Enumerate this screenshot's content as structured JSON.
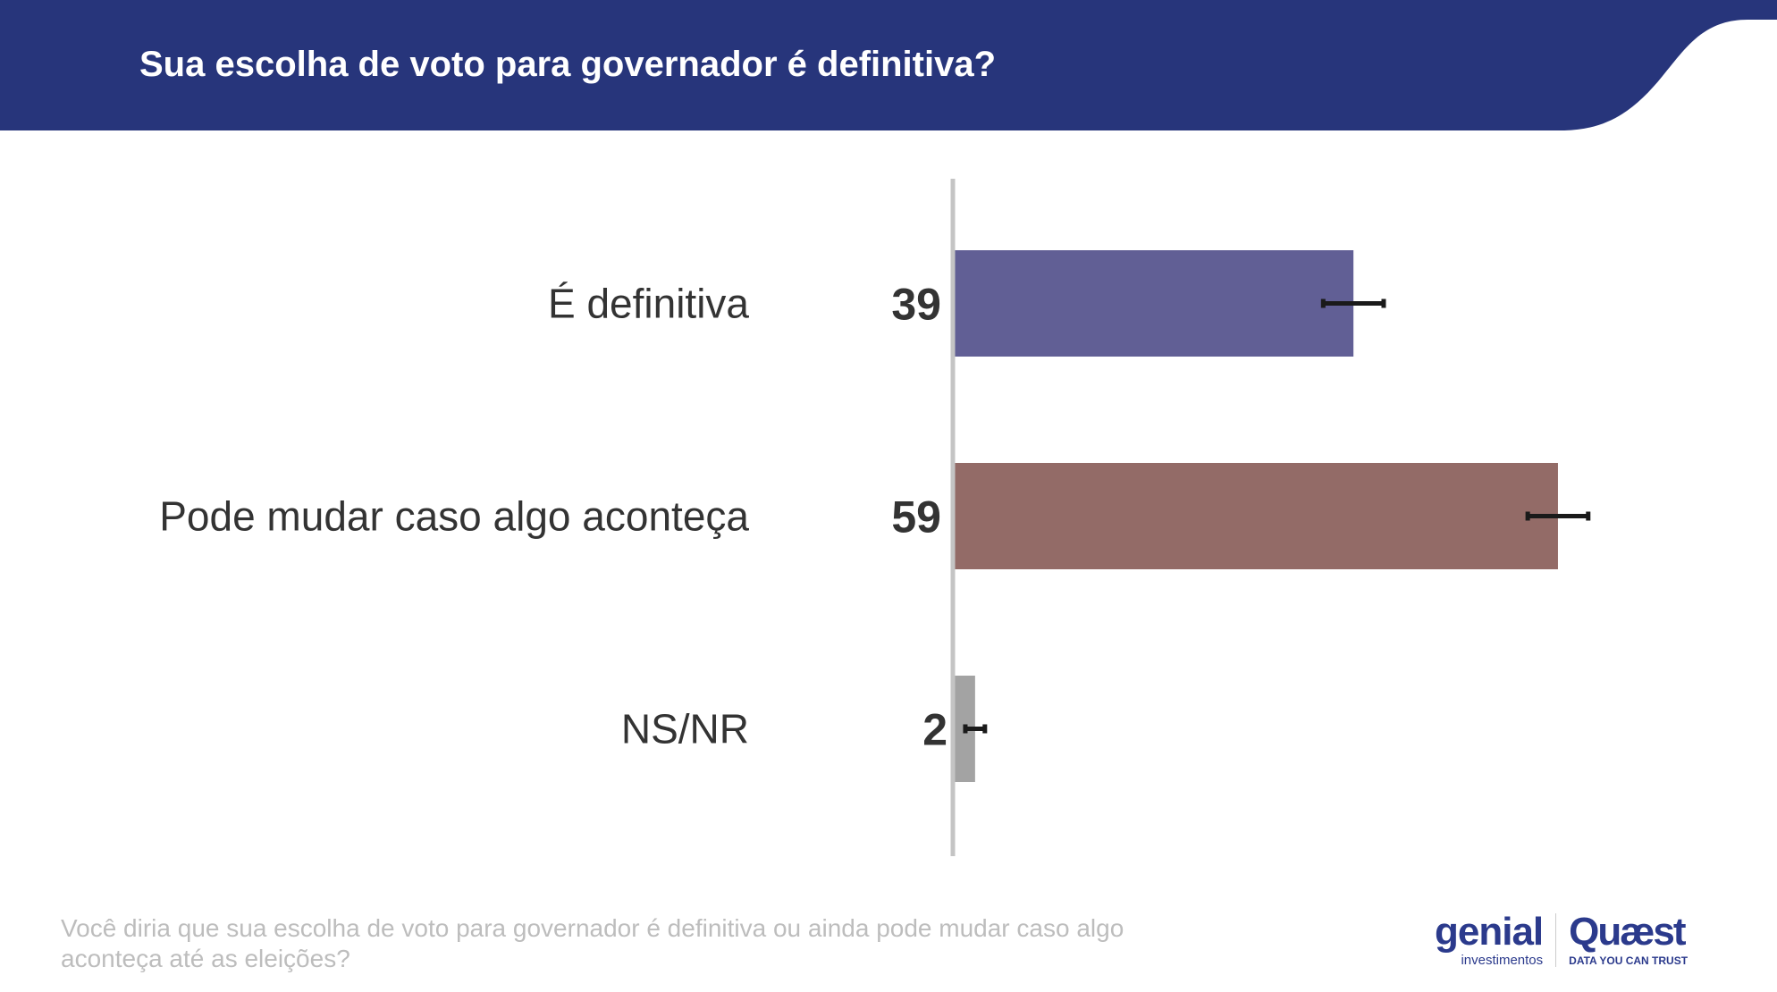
{
  "header": {
    "title": "Sua escolha de voto para governador é definitiva?",
    "color": "#27357b"
  },
  "chart_data": {
    "type": "bar",
    "orientation": "horizontal",
    "categories": [
      "É definitiva",
      "Pode mudar caso algo aconteça",
      "NS/NR"
    ],
    "values": [
      39,
      59,
      2
    ],
    "value_labels": [
      "39",
      "59",
      "2"
    ],
    "error_margin": [
      3,
      3,
      1
    ],
    "colors": [
      "#615f95",
      "#936b67",
      "#a3a3a3"
    ],
    "xlim": [
      0,
      100
    ],
    "grid": false
  },
  "footnote": "Você diria que sua escolha de voto para governador é definitiva ou ainda pode mudar caso algo aconteça até as eleições?",
  "logos": {
    "genial": "genial",
    "genial_sub": "investimentos",
    "quaest": "Quæst",
    "quaest_sub": "DATA YOU CAN TRUST"
  }
}
